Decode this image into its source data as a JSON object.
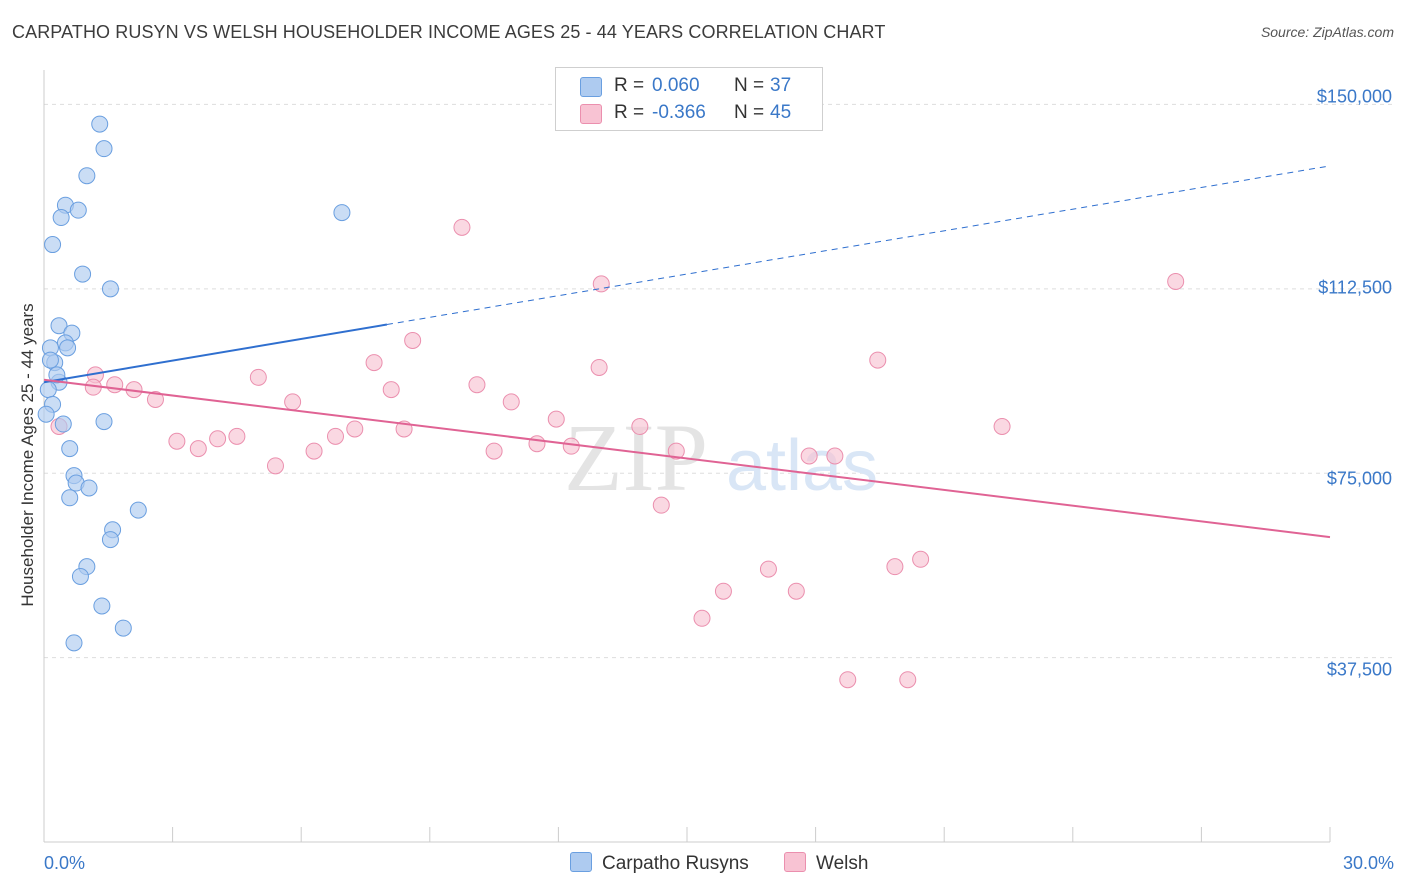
{
  "title": "CARPATHO RUSYN VS WELSH HOUSEHOLDER INCOME AGES 25 - 44 YEARS CORRELATION CHART",
  "source": "Source: ZipAtlas.com",
  "watermark": {
    "zip": "ZIP",
    "atlas": "atlas"
  },
  "legend": {
    "r_label": "R =",
    "n_label": "N =",
    "rows": [
      {
        "r": "0.060",
        "n": "37"
      },
      {
        "r": "-0.366",
        "n": "45"
      }
    ]
  },
  "colors": {
    "blue_fill": "#aecbf0",
    "blue_stroke": "#6a9fe0",
    "blue_line": "#2f6fcf",
    "pink_fill": "#f8c3d3",
    "pink_stroke": "#eb8fae",
    "pink_line": "#e06394",
    "grid": "#dddddd",
    "tick_text": "#3a78c8"
  },
  "chart_data": {
    "type": "scatter",
    "title": "CARPATHO RUSYN VS WELSH HOUSEHOLDER INCOME AGES 25 - 44 YEARS CORRELATION CHART",
    "xlabel": "",
    "ylabel": "Householder Income Ages 25 - 44 years",
    "xlim": [
      0,
      30
    ],
    "ylim": [
      0,
      157000
    ],
    "x_tick_labels": [
      "0.0%",
      "30.0%"
    ],
    "y_ticks": [
      37500,
      75000,
      112500,
      150000
    ],
    "y_tick_labels": [
      "$37,500",
      "$75,000",
      "$112,500",
      "$150,000"
    ],
    "grid": true,
    "series": [
      {
        "name": "Carpatho Rusyns",
        "r": 0.06,
        "n": 37,
        "points": [
          [
            1.3,
            146000
          ],
          [
            1.4,
            141000
          ],
          [
            1.0,
            135500
          ],
          [
            0.5,
            129500
          ],
          [
            0.8,
            128500
          ],
          [
            0.4,
            127000
          ],
          [
            0.2,
            121500
          ],
          [
            0.9,
            115500
          ],
          [
            1.55,
            112500
          ],
          [
            6.95,
            128000
          ],
          [
            0.35,
            105000
          ],
          [
            0.65,
            103500
          ],
          [
            0.5,
            101500
          ],
          [
            0.55,
            100500
          ],
          [
            0.15,
            100500
          ],
          [
            0.25,
            97500
          ],
          [
            0.35,
            93500
          ],
          [
            0.1,
            92000
          ],
          [
            0.2,
            89000
          ],
          [
            0.05,
            87000
          ],
          [
            0.45,
            85000
          ],
          [
            1.4,
            85500
          ],
          [
            0.6,
            80000
          ],
          [
            0.7,
            74500
          ],
          [
            0.75,
            73000
          ],
          [
            1.05,
            72000
          ],
          [
            0.6,
            70000
          ],
          [
            2.2,
            67500
          ],
          [
            1.6,
            63500
          ],
          [
            1.55,
            61500
          ],
          [
            1.0,
            56000
          ],
          [
            0.85,
            54000
          ],
          [
            1.35,
            48000
          ],
          [
            1.85,
            43500
          ],
          [
            0.7,
            40500
          ],
          [
            0.3,
            95000
          ],
          [
            0.15,
            98000
          ]
        ]
      },
      {
        "name": "Welsh",
        "r": -0.366,
        "n": 45,
        "points": [
          [
            0.35,
            84500
          ],
          [
            1.2,
            95000
          ],
          [
            1.65,
            93000
          ],
          [
            2.1,
            92000
          ],
          [
            2.6,
            90000
          ],
          [
            3.1,
            81500
          ],
          [
            3.6,
            80000
          ],
          [
            4.05,
            82000
          ],
          [
            4.5,
            82500
          ],
          [
            5.0,
            94500
          ],
          [
            5.4,
            76500
          ],
          [
            5.8,
            89500
          ],
          [
            6.3,
            79500
          ],
          [
            6.8,
            82500
          ],
          [
            7.25,
            84000
          ],
          [
            7.7,
            97500
          ],
          [
            8.1,
            92000
          ],
          [
            8.4,
            84000
          ],
          [
            8.6,
            102000
          ],
          [
            9.75,
            125000
          ],
          [
            10.1,
            93000
          ],
          [
            10.5,
            79500
          ],
          [
            10.9,
            89500
          ],
          [
            11.5,
            81000
          ],
          [
            11.95,
            86000
          ],
          [
            12.3,
            80500
          ],
          [
            12.95,
            96500
          ],
          [
            13.0,
            113500
          ],
          [
            13.9,
            84500
          ],
          [
            14.4,
            68500
          ],
          [
            14.75,
            79500
          ],
          [
            15.35,
            45500
          ],
          [
            15.85,
            51000
          ],
          [
            16.9,
            55500
          ],
          [
            17.55,
            51000
          ],
          [
            17.85,
            78500
          ],
          [
            18.45,
            78500
          ],
          [
            18.75,
            33000
          ],
          [
            19.45,
            98000
          ],
          [
            19.85,
            56000
          ],
          [
            20.15,
            33000
          ],
          [
            20.45,
            57500
          ],
          [
            22.35,
            84500
          ],
          [
            26.4,
            114000
          ],
          [
            1.15,
            92500
          ]
        ]
      }
    ],
    "trendlines": [
      {
        "series": "Carpatho Rusyns",
        "x0": 0,
        "y0": 93500,
        "x_solid_end": 8.0,
        "x1": 30,
        "y1": 137500
      },
      {
        "series": "Welsh",
        "x0": 0,
        "y0": 94000,
        "x1": 30,
        "y1": 62000
      }
    ]
  },
  "bottom_legend": [
    {
      "label": "Carpatho Rusyns"
    },
    {
      "label": "Welsh"
    }
  ]
}
